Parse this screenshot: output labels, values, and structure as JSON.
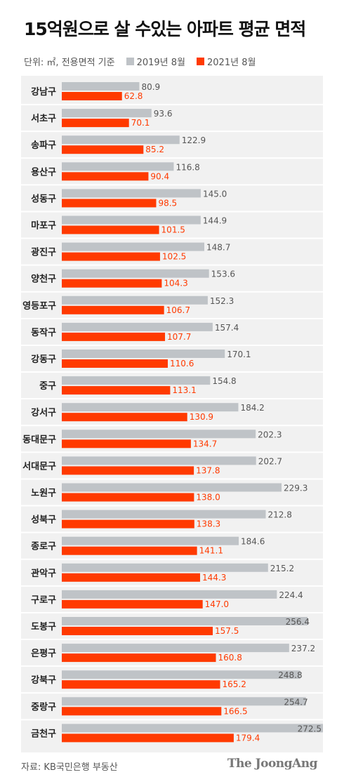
{
  "title": "15억원으로 살 수있는 아파트 평균 면적",
  "unit_note": "단위: ㎡, 전용면적 기준",
  "source": "자료: KB국민은행 부동산",
  "brand": "The JoongAng",
  "colors": {
    "s2019": "#bfc3c7",
    "s2021": "#ff3a00",
    "panel": "#f1f1f1"
  },
  "chart_data": {
    "type": "bar",
    "orientation": "horizontal",
    "categories": [
      "강남구",
      "서초구",
      "송파구",
      "용산구",
      "성동구",
      "마포구",
      "광진구",
      "양천구",
      "영등포구",
      "동작구",
      "강동구",
      "중구",
      "강서구",
      "동대문구",
      "서대문구",
      "노원구",
      "성북구",
      "종로구",
      "관악구",
      "구로구",
      "도봉구",
      "은평구",
      "강북구",
      "중랑구",
      "금천구"
    ],
    "series": [
      {
        "name": "2019년 8월",
        "values": [
          80.9,
          93.6,
          122.9,
          116.8,
          145.0,
          144.9,
          148.7,
          153.6,
          152.3,
          157.4,
          170.1,
          154.8,
          184.2,
          202.3,
          202.7,
          229.3,
          212.8,
          184.6,
          215.2,
          224.4,
          256.4,
          237.2,
          248.8,
          254.7,
          272.5
        ]
      },
      {
        "name": "2021년 8월",
        "values": [
          62.8,
          70.1,
          85.2,
          90.4,
          98.5,
          101.5,
          102.5,
          104.3,
          106.7,
          107.7,
          110.6,
          113.1,
          130.9,
          134.7,
          137.8,
          138.0,
          138.3,
          141.1,
          144.3,
          147.0,
          157.5,
          160.8,
          165.2,
          166.5,
          179.4
        ]
      }
    ],
    "xlim": [
      0,
      272.5
    ],
    "grid": false,
    "legend": "top"
  }
}
